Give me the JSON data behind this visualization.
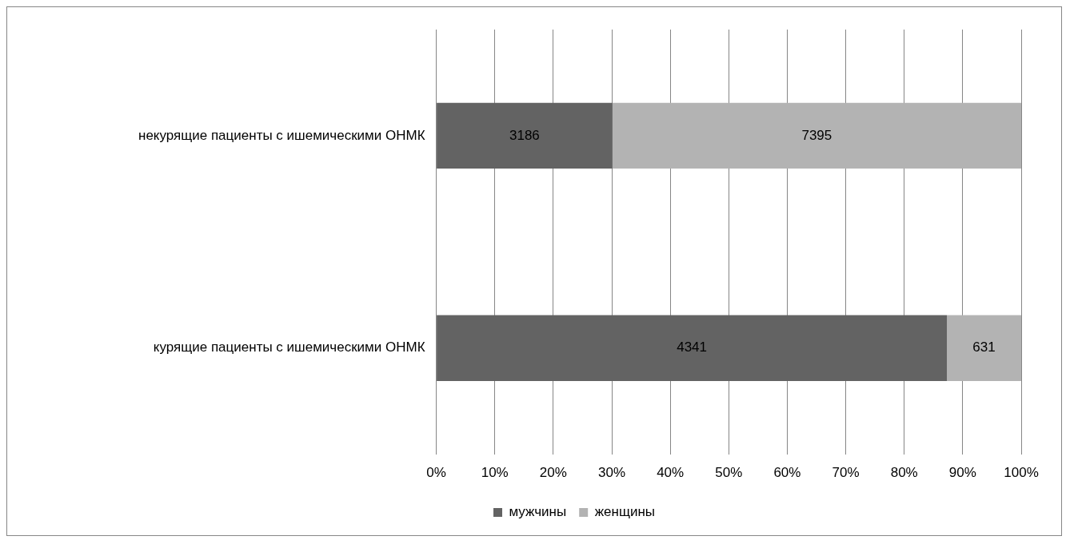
{
  "chart_data": {
    "type": "bar",
    "orientation": "horizontal",
    "stacked": true,
    "categories": [
      "некурящие пациенты с ишемическими ОНМК",
      "курящие пациенты с ишемическими ОНМК"
    ],
    "series": [
      {
        "name": "мужчины",
        "color": "#636363",
        "values": [
          30.1,
          87.3
        ]
      },
      {
        "name": "женщины",
        "color": "#b3b3b3",
        "values": [
          69.9,
          12.7
        ]
      }
    ],
    "annotations": [
      "3186",
      "7395",
      "4341",
      "631"
    ],
    "xlim": [
      0,
      100
    ],
    "xticks": [
      {
        "value": 0,
        "label": "0%"
      },
      {
        "value": 10,
        "label": "10%"
      },
      {
        "value": 20,
        "label": "20%"
      },
      {
        "value": 30,
        "label": "30%"
      },
      {
        "value": 40,
        "label": "40%"
      },
      {
        "value": 50,
        "label": "50%"
      },
      {
        "value": 60,
        "label": "60%"
      },
      {
        "value": 70,
        "label": "70%"
      },
      {
        "value": 80,
        "label": "80%"
      },
      {
        "value": 90,
        "label": "90%"
      },
      {
        "value": 100,
        "label": "100%"
      }
    ],
    "grid": "x",
    "legend": "bottom"
  }
}
